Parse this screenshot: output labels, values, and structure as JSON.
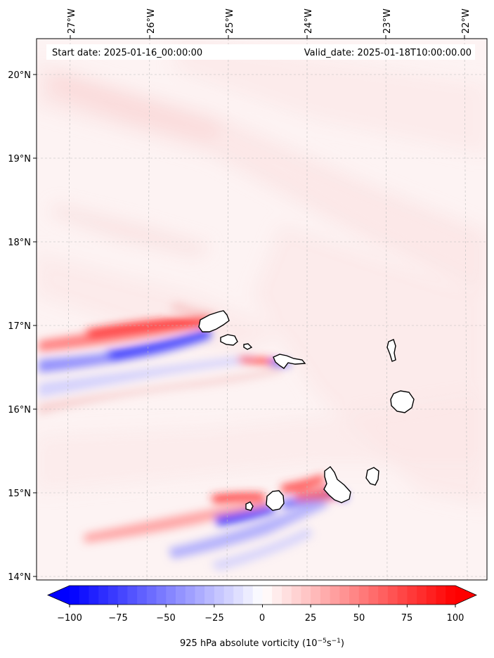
{
  "header": {
    "start_label": "Start date: 2025-01-16_00:00:00",
    "valid_label": "Valid_date: 2025-01-18T10:00:00.00"
  },
  "axes": {
    "lon_ticks": [
      "27°W",
      "26°W",
      "25°W",
      "24°W",
      "23°W",
      "22°W"
    ],
    "lat_ticks": [
      "20°N",
      "19°N",
      "18°N",
      "17°N",
      "16°N",
      "15°N",
      "14°N"
    ]
  },
  "colorbar": {
    "ticks": [
      "−100",
      "−75",
      "−50",
      "−25",
      "0",
      "25",
      "50",
      "75",
      "100"
    ],
    "label_main": "925 hPa absolute vorticity (10",
    "label_exp1": "−5",
    "label_mid": "s",
    "label_exp2": "−1",
    "label_end": ")",
    "min": -100,
    "max": 100,
    "step": 5,
    "extend": "both",
    "colormap": "bwr",
    "neg_color": "#0000ff",
    "pos_color": "#ff0000",
    "mid_color": "#ffffff"
  },
  "map": {
    "projection": "Lambert-like conic",
    "lon_range": [
      -27.5,
      -21.8
    ],
    "lat_range": [
      14,
      20.4
    ],
    "grid": true
  },
  "islands": [
    {
      "name": "santo-antao-island"
    },
    {
      "name": "sao-vicente-island"
    },
    {
      "name": "santa-luzia-island"
    },
    {
      "name": "sao-nicolau-island"
    },
    {
      "name": "sal-island"
    },
    {
      "name": "boa-vista-island"
    },
    {
      "name": "brava-island"
    },
    {
      "name": "fogo-island"
    },
    {
      "name": "santiago-island"
    },
    {
      "name": "maio-island"
    }
  ]
}
